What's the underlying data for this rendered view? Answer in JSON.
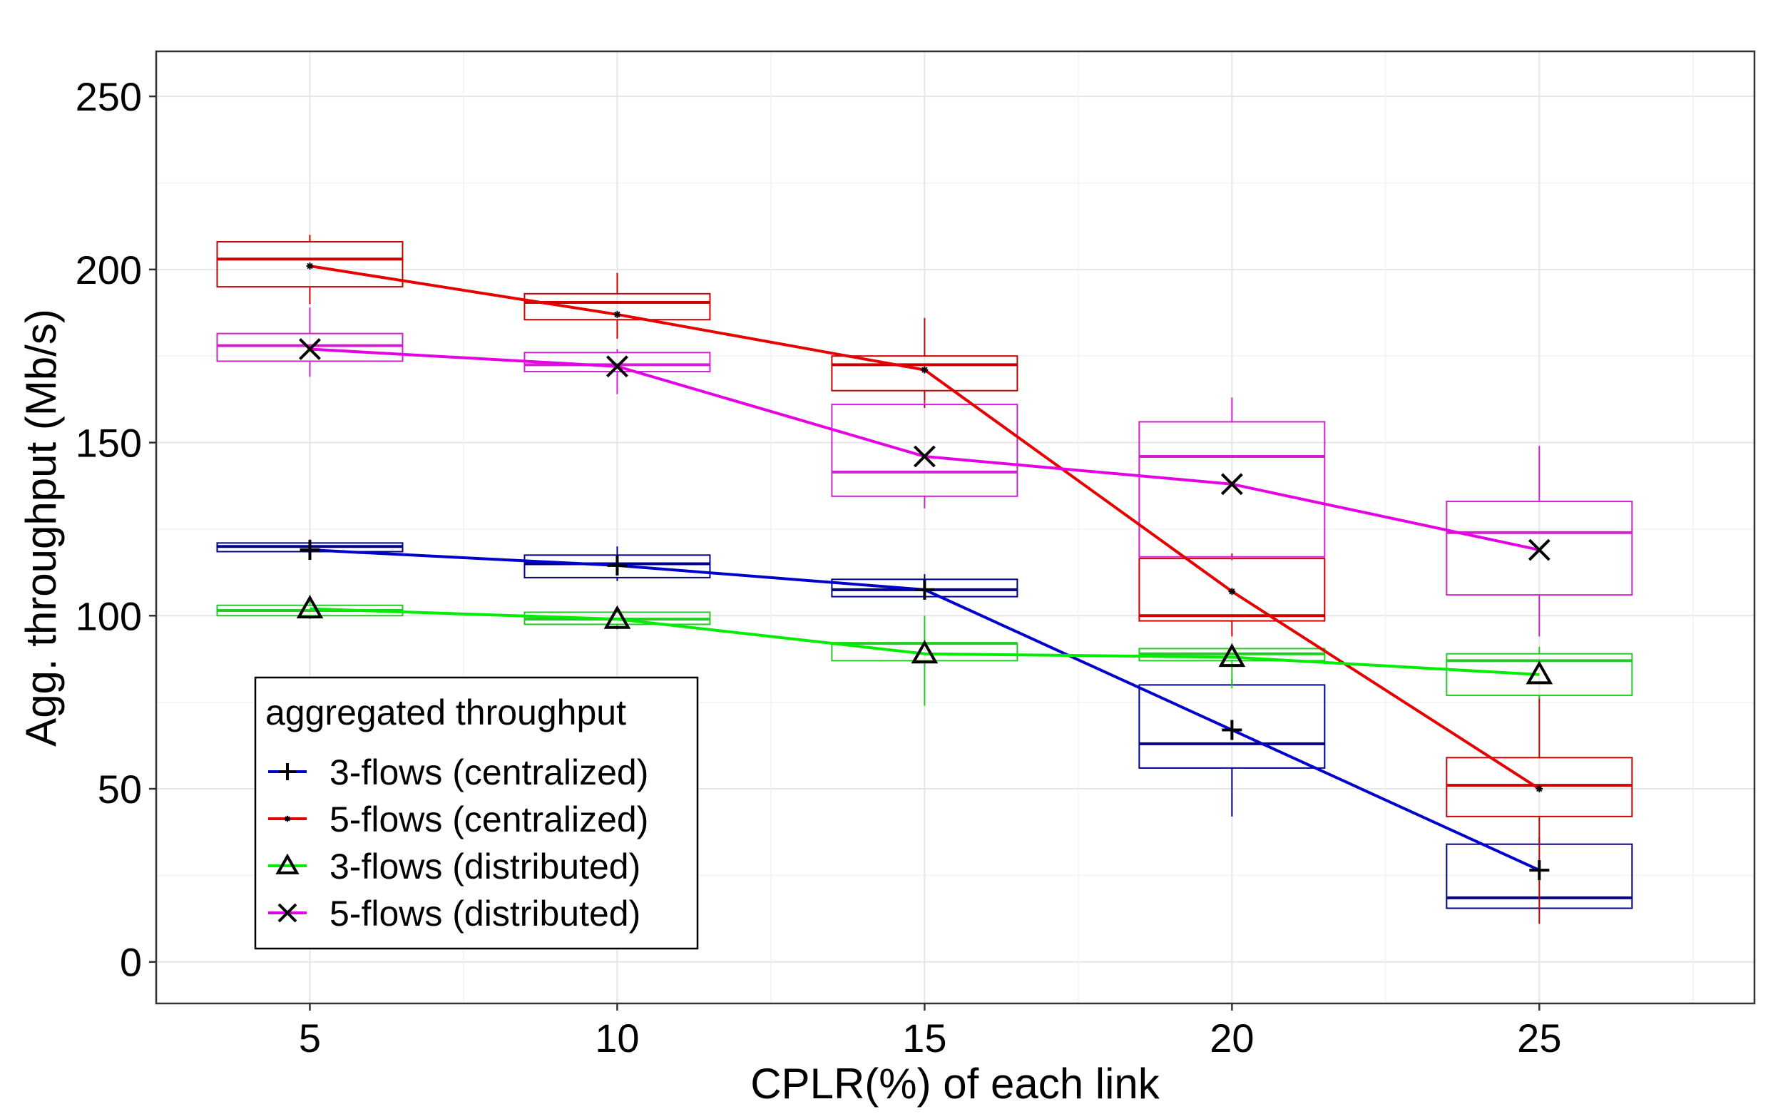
{
  "chart_data": {
    "type": "box",
    "title": "",
    "xlabel": "CPLR(%) of each link",
    "ylabel": "Agg. throughput (Mb/s)",
    "x": [
      5,
      10,
      15,
      20,
      25
    ],
    "x_ticks": [
      "5",
      "10",
      "15",
      "20",
      "25"
    ],
    "xlim": [
      2.5,
      28.5
    ],
    "ylim": [
      -12,
      263
    ],
    "y_ticks": [
      "0",
      "50",
      "100",
      "150",
      "200",
      "250"
    ],
    "y_tick_values": [
      0,
      50,
      100,
      150,
      200,
      250
    ],
    "grid": true,
    "legend": {
      "title": "aggregated throughput",
      "position": "bottom-left"
    },
    "series": [
      {
        "name": "3-flows (centralized)",
        "color": "#0000CD",
        "box_color": "#00008B",
        "marker": "+",
        "means": [
          119,
          114.5,
          107.5,
          67,
          26.5
        ],
        "boxes": [
          {
            "x": 5,
            "whisker_low": 118,
            "q1": 118.5,
            "median": 120,
            "q3": 121,
            "whisker_high": 122
          },
          {
            "x": 10,
            "whisker_low": 110,
            "q1": 111,
            "median": 115,
            "q3": 117.5,
            "whisker_high": 120
          },
          {
            "x": 15,
            "whisker_low": 105,
            "q1": 105.5,
            "median": 107.5,
            "q3": 110.5,
            "whisker_high": 112
          },
          {
            "x": 20,
            "whisker_low": 42,
            "q1": 56,
            "median": 63,
            "q3": 80,
            "whisker_high": 82
          },
          {
            "x": 25,
            "whisker_low": 15,
            "q1": 15.5,
            "median": 18.5,
            "q3": 34,
            "whisker_high": 36
          }
        ]
      },
      {
        "name": "5-flows (centralized)",
        "color": "#E60000",
        "box_color": "#CC0000",
        "marker": "*",
        "means": [
          201,
          187,
          171,
          107,
          50
        ],
        "boxes": [
          {
            "x": 5,
            "whisker_low": 190,
            "q1": 195,
            "median": 203,
            "q3": 208,
            "whisker_high": 210
          },
          {
            "x": 10,
            "whisker_low": 180,
            "q1": 185.5,
            "median": 190.5,
            "q3": 193,
            "whisker_high": 199
          },
          {
            "x": 15,
            "whisker_low": 160,
            "q1": 165,
            "median": 172.5,
            "q3": 175,
            "whisker_high": 186
          },
          {
            "x": 20,
            "whisker_low": 94,
            "q1": 98.5,
            "median": 100,
            "q3": 116.5,
            "whisker_high": 118
          },
          {
            "x": 25,
            "whisker_low": 11,
            "q1": 42,
            "median": 51,
            "q3": 59,
            "whisker_high": 77
          }
        ]
      },
      {
        "name": "3-flows (distributed)",
        "color": "#00EE00",
        "box_color": "#22CC22",
        "marker": "triangle",
        "means": [
          102,
          99,
          89,
          88,
          83
        ],
        "boxes": [
          {
            "x": 5,
            "whisker_low": 99,
            "q1": 100,
            "median": 101.5,
            "q3": 103,
            "whisker_high": 106
          },
          {
            "x": 10,
            "whisker_low": 96,
            "q1": 97.5,
            "median": 99,
            "q3": 101,
            "whisker_high": 102
          },
          {
            "x": 15,
            "whisker_low": 74,
            "q1": 87,
            "median": 92,
            "q3": 92,
            "whisker_high": 100
          },
          {
            "x": 20,
            "whisker_low": 79,
            "q1": 87,
            "median": 89,
            "q3": 90.5,
            "whisker_high": 92
          },
          {
            "x": 25,
            "whisker_low": 76,
            "q1": 77,
            "median": 87,
            "q3": 89,
            "whisker_high": 91
          }
        ]
      },
      {
        "name": "5-flows (distributed)",
        "color": "#E600E6",
        "box_color": "#D020D0",
        "marker": "x",
        "means": [
          177,
          172,
          146,
          138,
          119
        ],
        "boxes": [
          {
            "x": 5,
            "whisker_low": 169,
            "q1": 173.5,
            "median": 178,
            "q3": 181.5,
            "whisker_high": 189
          },
          {
            "x": 10,
            "whisker_low": 164,
            "q1": 170.5,
            "median": 172.5,
            "q3": 176,
            "whisker_high": 177
          },
          {
            "x": 15,
            "whisker_low": 131,
            "q1": 134.5,
            "median": 141.5,
            "q3": 161,
            "whisker_high": 162
          },
          {
            "x": 20,
            "whisker_low": 116,
            "q1": 117,
            "median": 146,
            "q3": 156,
            "whisker_high": 163
          },
          {
            "x": 25,
            "whisker_low": 94,
            "q1": 106,
            "median": 124,
            "q3": 133,
            "whisker_high": 149
          }
        ]
      }
    ]
  }
}
